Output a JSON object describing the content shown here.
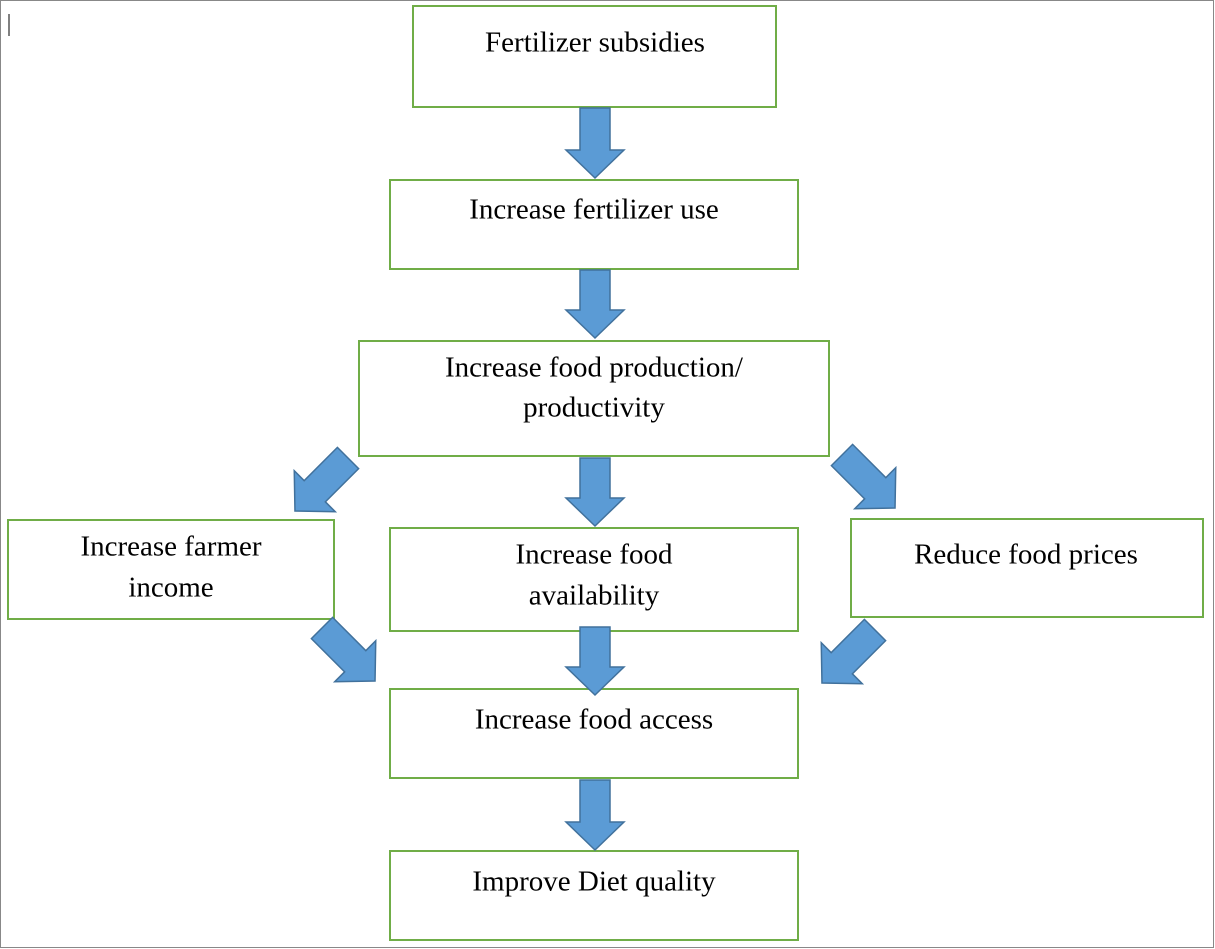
{
  "nodes": [
    {
      "lines": [
        "Fertilizer subsidies"
      ]
    },
    {
      "lines": [
        "Increase fertilizer use"
      ]
    },
    {
      "lines": [
        "Increase food production/",
        "productivity"
      ]
    },
    {
      "lines": [
        "Increase farmer",
        "income"
      ]
    },
    {
      "lines": [
        "Increase food",
        "availability"
      ]
    },
    {
      "lines": [
        "Reduce food prices"
      ]
    },
    {
      "lines": [
        "Increase food access"
      ]
    },
    {
      "lines": [
        "Improve Diet quality"
      ]
    }
  ]
}
